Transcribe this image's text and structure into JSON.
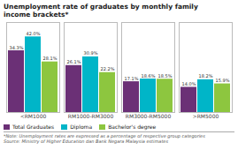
{
  "chart_data": {
    "type": "bar",
    "title": "Unemployment rate of graduates by monthly family\nincome brackets*",
    "categories": [
      "<RM1000",
      "RM1000-RM3000",
      "RM3000-RM5000",
      ">RM5000"
    ],
    "series": [
      {
        "name": "Total Graduates",
        "color": "#6b3076",
        "values": [
          34.3,
          26.1,
          17.1,
          14.0
        ],
        "value_labels": [
          "34.3%",
          "26.1%",
          "17.1%",
          "14.0%"
        ]
      },
      {
        "name": "Diploma",
        "color": "#00b5c8",
        "values": [
          42.0,
          30.9,
          18.6,
          18.2
        ],
        "value_labels": [
          "42.0%",
          "30.9%",
          "18.6%",
          "18.2%"
        ]
      },
      {
        "name": "Bachelor's degree",
        "color": "#8dc63f",
        "values": [
          28.1,
          22.2,
          18.5,
          15.9
        ],
        "value_labels": [
          "28.1%",
          "22.2%",
          "18.5%",
          "15.9%"
        ]
      }
    ],
    "ylim": [
      0,
      50
    ],
    "grid": false,
    "legend": "bottom",
    "data_labels": true,
    "tick_labels": "x",
    "annotations": [
      "*Note: Unemployment rates are expressed as a percentage of respective group categories",
      "Source: Ministry of Higher Education dan Bank Negara Malaysia estimates"
    ]
  }
}
